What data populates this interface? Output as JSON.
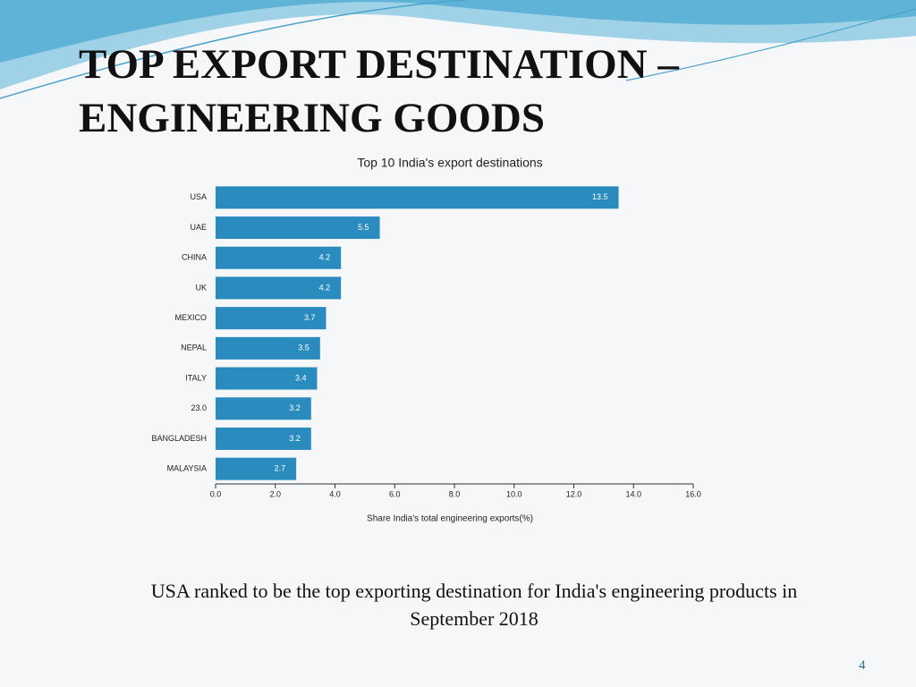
{
  "slide": {
    "title": "TOP EXPORT DESTINATION – ENGINEERING GOODS",
    "caption": "USA ranked to be the top exporting destination for India's engineering products in September 2018",
    "page_number": "4"
  },
  "chart_data": {
    "type": "bar",
    "orientation": "horizontal",
    "title": "Top 10 India's export destinations",
    "x_label": "Share India's total engineering exports(%)",
    "categories": [
      "USA",
      "UAE",
      "CHINA",
      "UK",
      "MEXICO",
      "NEPAL",
      "ITALY",
      "23.0",
      "BANGLADESH",
      "MALAYSIA"
    ],
    "values": [
      13.5,
      5.5,
      4.2,
      4.2,
      3.7,
      3.5,
      3.4,
      3.2,
      3.2,
      2.7
    ],
    "color": "#2a8bbf",
    "xlim": [
      0,
      16
    ],
    "xticks": [
      {
        "value": 0,
        "label": "0.0"
      },
      {
        "value": 2,
        "label": "2.0"
      },
      {
        "value": 4,
        "label": "4.0"
      },
      {
        "value": 6,
        "label": "6.0"
      },
      {
        "value": 8,
        "label": "8.0"
      },
      {
        "value": 10,
        "label": "10.0"
      },
      {
        "value": 12,
        "label": "12.0"
      },
      {
        "value": 14,
        "label": "14.0"
      },
      {
        "value": 16,
        "label": "16.0"
      }
    ]
  }
}
